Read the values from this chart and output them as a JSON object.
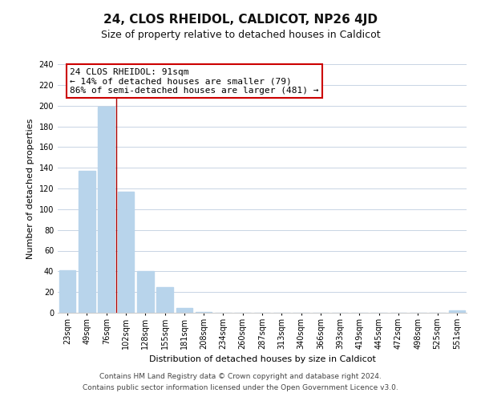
{
  "title": "24, CLOS RHEIDOL, CALDICOT, NP26 4JD",
  "subtitle": "Size of property relative to detached houses in Caldicot",
  "xlabel": "Distribution of detached houses by size in Caldicot",
  "ylabel": "Number of detached properties",
  "bar_labels": [
    "23sqm",
    "49sqm",
    "76sqm",
    "102sqm",
    "128sqm",
    "155sqm",
    "181sqm",
    "208sqm",
    "234sqm",
    "260sqm",
    "287sqm",
    "313sqm",
    "340sqm",
    "366sqm",
    "393sqm",
    "419sqm",
    "445sqm",
    "472sqm",
    "498sqm",
    "525sqm",
    "551sqm"
  ],
  "bar_values": [
    41,
    137,
    199,
    117,
    40,
    25,
    5,
    1,
    0,
    0,
    0,
    0,
    0,
    0,
    0,
    0,
    0,
    0,
    0,
    0,
    2
  ],
  "bar_color": "#b8d4eb",
  "vline_color": "#aa0000",
  "vline_x_index": 2.5,
  "annotation_title": "24 CLOS RHEIDOL: 91sqm",
  "annotation_line1": "← 14% of detached houses are smaller (79)",
  "annotation_line2": "86% of semi-detached houses are larger (481) →",
  "ylim": [
    0,
    240
  ],
  "yticks": [
    0,
    20,
    40,
    60,
    80,
    100,
    120,
    140,
    160,
    180,
    200,
    220,
    240
  ],
  "footnote1": "Contains HM Land Registry data © Crown copyright and database right 2024.",
  "footnote2": "Contains public sector information licensed under the Open Government Licence v3.0.",
  "bg_color": "#ffffff",
  "grid_color": "#c8d4e4",
  "annotation_box_edge": "#cc0000",
  "title_fontsize": 11,
  "subtitle_fontsize": 9,
  "ylabel_fontsize": 8,
  "xlabel_fontsize": 8,
  "tick_fontsize": 7,
  "annot_fontsize": 8,
  "footnote_fontsize": 6.5
}
